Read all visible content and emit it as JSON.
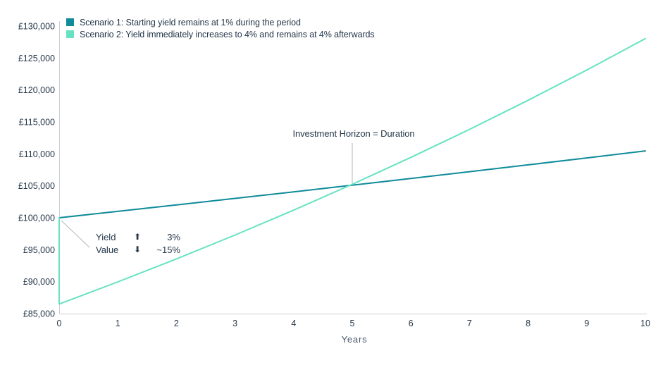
{
  "colors": {
    "scenario1": "#0f8b99",
    "scenario2": "#66e2c2",
    "text": "#26384a",
    "axis_line": "#c9ced3",
    "connector": "#b3b9be",
    "axis_title": "#47596b"
  },
  "icons": {
    "up_arrow": "⬆",
    "down_arrow": "⬇"
  },
  "chart_data": {
    "type": "line",
    "title": "",
    "xlabel": "Years",
    "ylabel": "",
    "xlim": [
      0,
      10
    ],
    "ylim": [
      85000,
      130000
    ],
    "grid": false,
    "legend_position": "top-left",
    "x_ticks": [
      {
        "value": 0,
        "label": "0"
      },
      {
        "value": 1,
        "label": "1"
      },
      {
        "value": 2,
        "label": "2"
      },
      {
        "value": 3,
        "label": "3"
      },
      {
        "value": 4,
        "label": "4"
      },
      {
        "value": 5,
        "label": "5"
      },
      {
        "value": 6,
        "label": "6"
      },
      {
        "value": 7,
        "label": "7"
      },
      {
        "value": 8,
        "label": "8"
      },
      {
        "value": 9,
        "label": "9"
      },
      {
        "value": 10,
        "label": "10"
      }
    ],
    "y_ticks": [
      {
        "value": 85000,
        "label": "£85,000"
      },
      {
        "value": 90000,
        "label": "£90,000"
      },
      {
        "value": 95000,
        "label": "£95,000"
      },
      {
        "value": 100000,
        "label": "£100,000"
      },
      {
        "value": 105000,
        "label": "£105,000"
      },
      {
        "value": 110000,
        "label": "£110,000"
      },
      {
        "value": 115000,
        "label": "£115,000"
      },
      {
        "value": 120000,
        "label": "£120,000"
      },
      {
        "value": 125000,
        "label": "£125,000"
      },
      {
        "value": 130000,
        "label": "£130,000"
      }
    ],
    "series": [
      {
        "name": "Scenario 1: Starting yield remains at 1% during the period",
        "color": "#0f8b99",
        "points": [
          [
            0,
            100000
          ],
          [
            1,
            101000
          ],
          [
            2,
            102010
          ],
          [
            3,
            103030
          ],
          [
            4,
            104060
          ],
          [
            5,
            105101
          ],
          [
            6,
            106152
          ],
          [
            7,
            107214
          ],
          [
            8,
            108286
          ],
          [
            9,
            109369
          ],
          [
            10,
            110462
          ]
        ]
      },
      {
        "name": "Scenario 2: Yield immediately increases to 4% and remains at 4% afterwards",
        "color": "#66e2c2",
        "points": [
          [
            0,
            100000
          ],
          [
            0,
            86500
          ],
          [
            1,
            89960
          ],
          [
            2,
            93558
          ],
          [
            3,
            97301
          ],
          [
            4,
            101193
          ],
          [
            5,
            105240
          ],
          [
            6,
            109450
          ],
          [
            7,
            113828
          ],
          [
            8,
            118381
          ],
          [
            9,
            123116
          ],
          [
            10,
            128041
          ]
        ]
      }
    ],
    "annotations": {
      "horizon": {
        "text": "Investment Horizon = Duration",
        "x": 5,
        "y": 105200
      },
      "shock": {
        "rows": [
          {
            "label": "Yield",
            "arrow": "up",
            "value": "3%"
          },
          {
            "label": "Value",
            "arrow": "down",
            "value": "~15%"
          }
        ]
      }
    }
  }
}
